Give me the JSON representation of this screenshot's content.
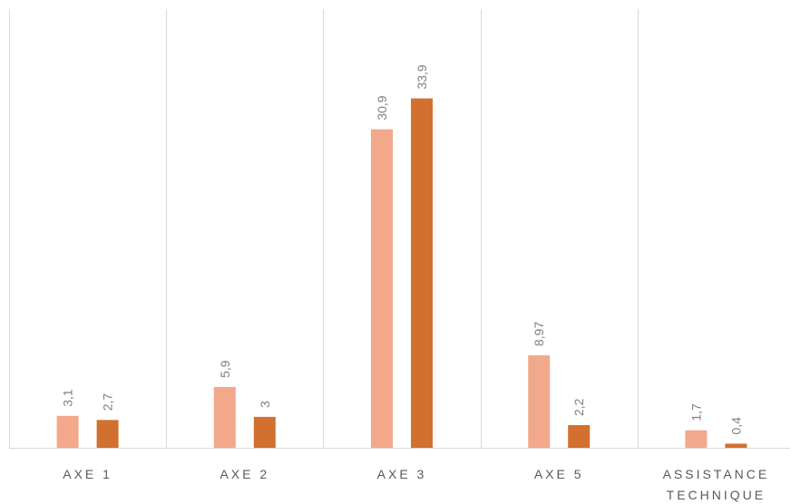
{
  "chart_data": {
    "type": "bar",
    "categories": [
      [
        "AXE 1"
      ],
      [
        "AXE 2"
      ],
      [
        "AXE 3"
      ],
      [
        "AXE 5"
      ],
      [
        "ASSISTANCE",
        "TECHNIQUE"
      ]
    ],
    "series": [
      {
        "color": "#f2a88a",
        "values": [
          3.1,
          5.9,
          30.9,
          8.97,
          1.7
        ],
        "labels": [
          "3,1",
          "5,9",
          "30,9",
          "8,97",
          "1,7"
        ]
      },
      {
        "color": "#d2702f",
        "values": [
          2.7,
          3,
          33.9,
          2.2,
          0.4
        ],
        "labels": [
          "2,7",
          "3",
          "33,9",
          "2,2",
          "0,4"
        ]
      }
    ],
    "ylim": [
      0,
      40
    ],
    "grid": "vertical separators between categories",
    "legend": "none",
    "title": "",
    "xlabel": "",
    "ylabel": ""
  }
}
